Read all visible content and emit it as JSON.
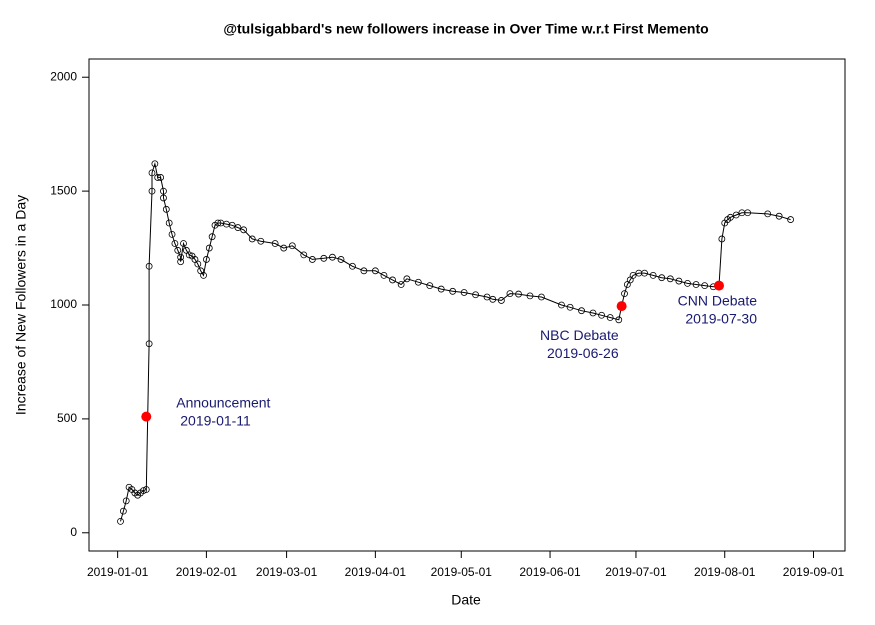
{
  "chart_data": {
    "type": "line",
    "title": "@tulsigabbard's new followers increase in Over Time w.r.t First Memento",
    "x_label": "Date",
    "y_label": "Increase of New Followers in a Day",
    "x": [
      "2019-01-02",
      "2019-01-03",
      "2019-01-04",
      "2019-01-05",
      "2019-01-06",
      "2019-01-07",
      "2019-01-08",
      "2019-01-09",
      "2019-01-10",
      "2019-01-11",
      "2019-01-12",
      "2019-01-12",
      "2019-01-13",
      "2019-01-13",
      "2019-01-14",
      "2019-01-15",
      "2019-01-16",
      "2019-01-17",
      "2019-01-17",
      "2019-01-18",
      "2019-01-19",
      "2019-01-20",
      "2019-01-21",
      "2019-01-22",
      "2019-01-23",
      "2019-01-23",
      "2019-01-24",
      "2019-01-25",
      "2019-01-26",
      "2019-01-27",
      "2019-01-28",
      "2019-01-29",
      "2019-01-30",
      "2019-01-31",
      "2019-02-01",
      "2019-02-02",
      "2019-02-03",
      "2019-02-04",
      "2019-02-05",
      "2019-02-06",
      "2019-02-08",
      "2019-02-10",
      "2019-02-12",
      "2019-02-14",
      "2019-02-17",
      "2019-02-20",
      "2019-02-25",
      "2019-02-28",
      "2019-03-03",
      "2019-03-07",
      "2019-03-10",
      "2019-03-14",
      "2019-03-17",
      "2019-03-20",
      "2019-03-24",
      "2019-03-28",
      "2019-04-01",
      "2019-04-04",
      "2019-04-07",
      "2019-04-10",
      "2019-04-12",
      "2019-04-16",
      "2019-04-20",
      "2019-04-24",
      "2019-04-28",
      "2019-05-02",
      "2019-05-06",
      "2019-05-10",
      "2019-05-12",
      "2019-05-15",
      "2019-05-18",
      "2019-05-21",
      "2019-05-25",
      "2019-05-29",
      "2019-06-05",
      "2019-06-08",
      "2019-06-12",
      "2019-06-16",
      "2019-06-19",
      "2019-06-22",
      "2019-06-25",
      "2019-06-26",
      "2019-06-27",
      "2019-06-28",
      "2019-06-29",
      "2019-06-30",
      "2019-07-02",
      "2019-07-04",
      "2019-07-07",
      "2019-07-10",
      "2019-07-13",
      "2019-07-16",
      "2019-07-19",
      "2019-07-22",
      "2019-07-25",
      "2019-07-28",
      "2019-07-30",
      "2019-07-31",
      "2019-08-01",
      "2019-08-02",
      "2019-08-03",
      "2019-08-05",
      "2019-08-07",
      "2019-08-09",
      "2019-08-16",
      "2019-08-20",
      "2019-08-24"
    ],
    "series": [
      {
        "color": "#000000",
        "values": [
          50,
          95,
          140,
          200,
          190,
          175,
          165,
          175,
          185,
          190,
          830,
          1170,
          1500,
          1580,
          1620,
          1560,
          1560,
          1500,
          1470,
          1420,
          1360,
          1310,
          1270,
          1240,
          1210,
          1190,
          1270,
          1240,
          1220,
          1215,
          1200,
          1180,
          1150,
          1130,
          1200,
          1250,
          1300,
          1350,
          1360,
          1360,
          1355,
          1350,
          1340,
          1330,
          1290,
          1280,
          1270,
          1250,
          1260,
          1220,
          1200,
          1205,
          1210,
          1200,
          1170,
          1150,
          1150,
          1130,
          1110,
          1090,
          1115,
          1100,
          1085,
          1070,
          1060,
          1055,
          1045,
          1035,
          1025,
          1020,
          1050,
          1048,
          1040,
          1035,
          1000,
          990,
          975,
          965,
          955,
          945,
          935,
          995,
          1050,
          1090,
          1110,
          1130,
          1140,
          1140,
          1130,
          1120,
          1115,
          1105,
          1095,
          1090,
          1085,
          1080,
          1085,
          1290,
          1360,
          1375,
          1385,
          1395,
          1405,
          1405,
          1400,
          1390,
          1375
        ]
      }
    ],
    "annotations": [
      {
        "text": "Announcement",
        "x": "2019-01-11",
        "y": 510,
        "color": "#ff0000"
      },
      {
        "text": "NBC Debate",
        "x": "2019-06-26",
        "y": 995,
        "color": "#ff0000"
      },
      {
        "text": "CNN Debate",
        "x": "2019-07-30",
        "y": 1085,
        "color": "#ff0000"
      }
    ],
    "xlim": [
      "2018-12-22",
      "2019-09-12"
    ],
    "xticks": [
      "2019-01-01",
      "2019-02-01",
      "2019-03-01",
      "2019-04-01",
      "2019-05-01",
      "2019-06-01",
      "2019-07-01",
      "2019-08-01",
      "2019-09-01"
    ],
    "ylim": [
      -80,
      2080
    ],
    "yticks": [
      0,
      500,
      1000,
      1500,
      2000
    ]
  }
}
